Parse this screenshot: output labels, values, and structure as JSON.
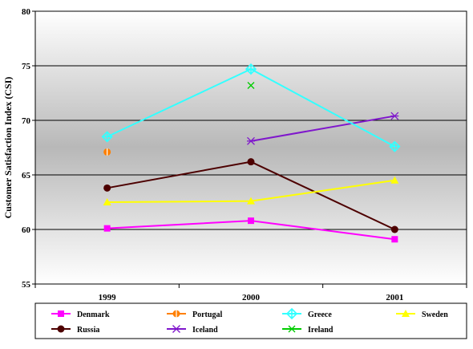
{
  "chart_data": {
    "type": "line",
    "title": "",
    "xlabel": "",
    "ylabel": "Customer Satisfaction Index  (CSI)",
    "categories": [
      "1999",
      "2000",
      "2001"
    ],
    "ylim": [
      55,
      80
    ],
    "yticks": [
      "55",
      "60",
      "65",
      "70",
      "75",
      "80"
    ],
    "grid": true,
    "legend_position": "bottom",
    "series": [
      {
        "name": "Denmark",
        "values": [
          60.1,
          60.8,
          59.1
        ],
        "color": "#FF00FF",
        "marker": "square"
      },
      {
        "name": "Portugal",
        "values": [
          67.1,
          null,
          null
        ],
        "color": "#FF8000",
        "marker": "circle-bar"
      },
      {
        "name": "Greece",
        "values": [
          68.5,
          74.7,
          67.6
        ],
        "color": "#33FFFF",
        "marker": "diamond-cross"
      },
      {
        "name": "Sweden",
        "values": [
          62.5,
          62.6,
          64.5
        ],
        "color": "#FFFF00",
        "marker": "triangle"
      },
      {
        "name": "Russia",
        "values": [
          63.8,
          66.2,
          60.0
        ],
        "color": "#4D0000",
        "marker": "circle"
      },
      {
        "name": "Iceland",
        "values": [
          null,
          68.1,
          70.4
        ],
        "color": "#7F16CC",
        "marker": "star"
      },
      {
        "name": "Ireland",
        "values": [
          null,
          73.2,
          null
        ],
        "color": "#00CC00",
        "marker": "x"
      }
    ]
  }
}
